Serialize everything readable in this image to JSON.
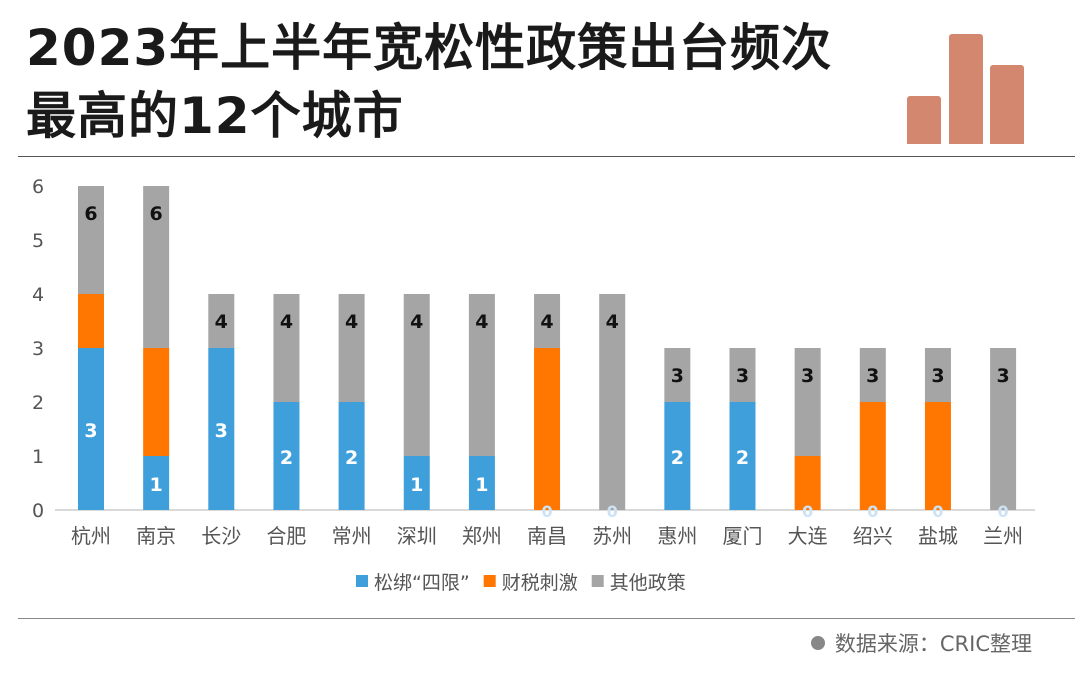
{
  "header": {
    "title_line1": "2023年上半年宽松性政策出台频次",
    "title_line2": "最高的12个城市"
  },
  "footer": {
    "source": "数据来源：CRIC整理"
  },
  "chart_data": {
    "type": "bar",
    "stacked": true,
    "categories": [
      "杭州",
      "南京",
      "长沙",
      "合肥",
      "常州",
      "深圳",
      "郑州",
      "南昌",
      "苏州",
      "惠州",
      "厦门",
      "大连",
      "绍兴",
      "盐城",
      "兰州"
    ],
    "series": [
      {
        "name": "松绑“四限”",
        "color": "#3f9fdb",
        "values": [
          3,
          1,
          3,
          2,
          2,
          1,
          1,
          0,
          0,
          2,
          2,
          0,
          0,
          0,
          0
        ]
      },
      {
        "name": "财税刺激",
        "color": "#ff7600",
        "values": [
          1,
          2,
          0,
          0,
          0,
          0,
          0,
          3,
          0,
          0,
          0,
          1,
          2,
          2,
          0
        ]
      },
      {
        "name": "其他政策",
        "color": "#a5a5a5",
        "values": [
          2,
          3,
          1,
          2,
          2,
          3,
          3,
          1,
          4,
          1,
          1,
          2,
          1,
          1,
          3
        ]
      }
    ],
    "data_labels": {
      "松绑“四限”": [
        3,
        1,
        3,
        2,
        2,
        1,
        1,
        0,
        0,
        2,
        2,
        0,
        0,
        0,
        0
      ],
      "total": [
        6,
        6,
        4,
        4,
        4,
        4,
        4,
        4,
        4,
        3,
        3,
        3,
        3,
        3,
        3
      ]
    },
    "yticks": [
      0,
      1,
      2,
      3,
      4,
      5,
      6
    ],
    "ylim": [
      0,
      6
    ],
    "grid": false,
    "legend": "bottom"
  }
}
